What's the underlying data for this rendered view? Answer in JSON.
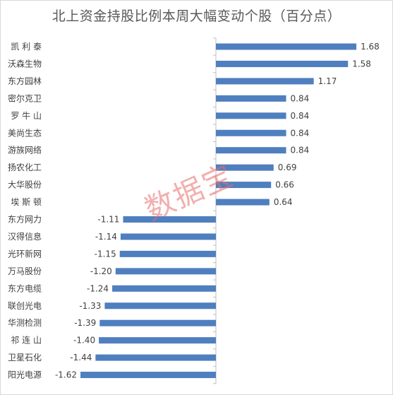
{
  "chart_data": {
    "type": "bar",
    "orientation": "horizontal",
    "title": "北上资金持股比例本周大幅变动个股（百分点）",
    "categories": [
      "凯利泰",
      "沃森生物",
      "东方园林",
      "密尔克卫",
      "罗牛山",
      "美尚生态",
      "游族网络",
      "扬农化工",
      "大华股份",
      "埃斯顿",
      "东方网力",
      "汉得信息",
      "光环新网",
      "万马股份",
      "东方电缆",
      "联创光电",
      "华测检测",
      "祁连山",
      "卫星石化",
      "阳光电源"
    ],
    "values": [
      1.68,
      1.58,
      1.17,
      0.84,
      0.84,
      0.84,
      0.84,
      0.69,
      0.66,
      0.64,
      -1.11,
      -1.14,
      -1.15,
      -1.2,
      -1.24,
      -1.33,
      -1.39,
      -1.4,
      -1.44,
      -1.62
    ],
    "value_labels": [
      "1.68",
      "1.58",
      "1.17",
      "0.84",
      "0.84",
      "0.84",
      "0.84",
      "0.69",
      "0.66",
      "0.64",
      "-1.11",
      "-1.14",
      "-1.15",
      "-1.20",
      "-1.24",
      "-1.33",
      "-1.39",
      "-1.40",
      "-1.44",
      "-1.62"
    ],
    "category_labels": [
      "凯 利 泰",
      "沃森生物",
      "东方园林",
      "密尔克卫",
      "罗 牛 山",
      "美尚生态",
      "游族网络",
      "扬农化工",
      "大华股份",
      "埃 斯 顿",
      "东方网力",
      "汉得信息",
      "光环新网",
      "万马股份",
      "东方电缆",
      "联创光电",
      "华测检测",
      "祁 连 山",
      "卫星石化",
      "阳光电源"
    ],
    "bar_color": "#4f7fbf",
    "axis_color": "#bfbfbf",
    "grid": false,
    "legend": "none"
  },
  "watermark": "数据宝"
}
